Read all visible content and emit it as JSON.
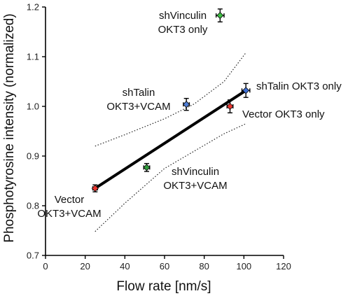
{
  "chart_data": {
    "type": "scatter",
    "xlabel": "Flow rate [nm/s]",
    "ylabel": "Phosphotyrosine intensity (normalized)",
    "xlim": [
      0,
      120
    ],
    "ylim": [
      0.7,
      1.2
    ],
    "xticks": [
      "0",
      "20",
      "40",
      "60",
      "80",
      "100",
      "120"
    ],
    "yticks": [
      "0.7",
      "0.8",
      "0.9",
      "1.0",
      "1.1",
      "1.2"
    ],
    "grid": false,
    "points": [
      {
        "x": 25,
        "y": 0.835,
        "xerr": 1.2,
        "yerr": 0.007,
        "color": "#e8352f",
        "label_lines": [
          "Vector",
          "OKT3+VCAM"
        ]
      },
      {
        "x": 51,
        "y": 0.877,
        "xerr": 1.5,
        "yerr": 0.008,
        "color": "#2f9a3b",
        "label_lines": [
          "shVinculin",
          "OKT3+VCAM"
        ]
      },
      {
        "x": 71,
        "y": 1.004,
        "xerr": 1.5,
        "yerr": 0.012,
        "color": "#4f7ed6",
        "label_lines": [
          "shTalin",
          "OKT3+VCAM"
        ]
      },
      {
        "x": 93,
        "y": 1.0,
        "xerr": 1.5,
        "yerr": 0.013,
        "color": "#e8352f",
        "label_lines": [
          "Vector OKT3 only"
        ]
      },
      {
        "x": 101,
        "y": 1.032,
        "xerr": 2,
        "yerr": 0.014,
        "color": "#3d6fd6",
        "label_lines": [
          "shTalin OKT3 only"
        ]
      },
      {
        "x": 88,
        "y": 1.183,
        "xerr": 2,
        "yerr": 0.013,
        "color": "#3fbf45",
        "label_lines": [
          "shVinculin",
          "OKT3 only"
        ]
      }
    ],
    "fit_line": {
      "x": [
        25,
        101
      ],
      "y": [
        0.835,
        1.032
      ]
    },
    "confidence_band": {
      "upper": [
        [
          25,
          0.92
        ],
        [
          40,
          0.943
        ],
        [
          60,
          0.975
        ],
        [
          75,
          1.005
        ],
        [
          90,
          1.05
        ],
        [
          101,
          1.108
        ]
      ],
      "lower": [
        [
          25,
          0.748
        ],
        [
          40,
          0.805
        ],
        [
          60,
          0.875
        ],
        [
          75,
          0.91
        ],
        [
          90,
          0.945
        ],
        [
          101,
          0.965
        ]
      ]
    }
  }
}
